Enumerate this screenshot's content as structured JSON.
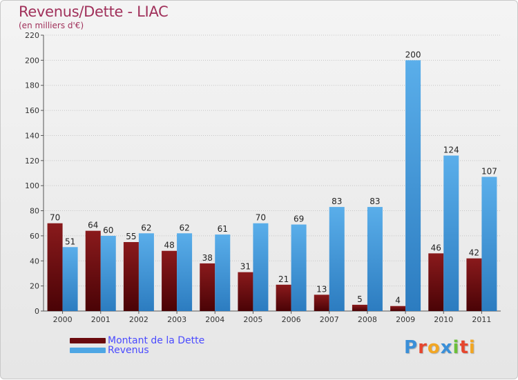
{
  "title": "Revenus/Dette - LIAC",
  "subtitle": "(en milliers d'€)",
  "chart_data": {
    "type": "bar",
    "categories": [
      "2000",
      "2001",
      "2002",
      "2003",
      "2004",
      "2005",
      "2006",
      "2007",
      "2008",
      "2009",
      "2010",
      "2011"
    ],
    "series": [
      {
        "name": "Montant de la Dette",
        "color": "#7a0e12",
        "values": [
          70,
          64,
          55,
          48,
          38,
          31,
          21,
          13,
          5,
          4,
          46,
          42
        ]
      },
      {
        "name": "Revenus",
        "color": "#4ea6e4",
        "values": [
          51,
          60,
          62,
          62,
          61,
          70,
          69,
          83,
          83,
          200,
          124,
          107
        ]
      }
    ],
    "ylim": [
      0,
      220
    ],
    "yticks": [
      "0",
      "20",
      "40",
      "60",
      "80",
      "100",
      "120",
      "140",
      "160",
      "180",
      "200",
      "220"
    ],
    "grid": true,
    "legend": "bottom-left"
  },
  "legend": {
    "items": [
      {
        "label": "Montant de la Dette",
        "color": "#7a0e12"
      },
      {
        "label": "Revenus",
        "color": "#4ea6e4"
      }
    ]
  },
  "logo": {
    "letters": [
      "P",
      "r",
      "o",
      "x",
      "i",
      "t",
      "i"
    ],
    "colors": [
      "#3a8fd8",
      "#e6462e",
      "#f2a623",
      "#3a8fd8",
      "#6cbf3a",
      "#e6462e",
      "#f2a623"
    ]
  }
}
